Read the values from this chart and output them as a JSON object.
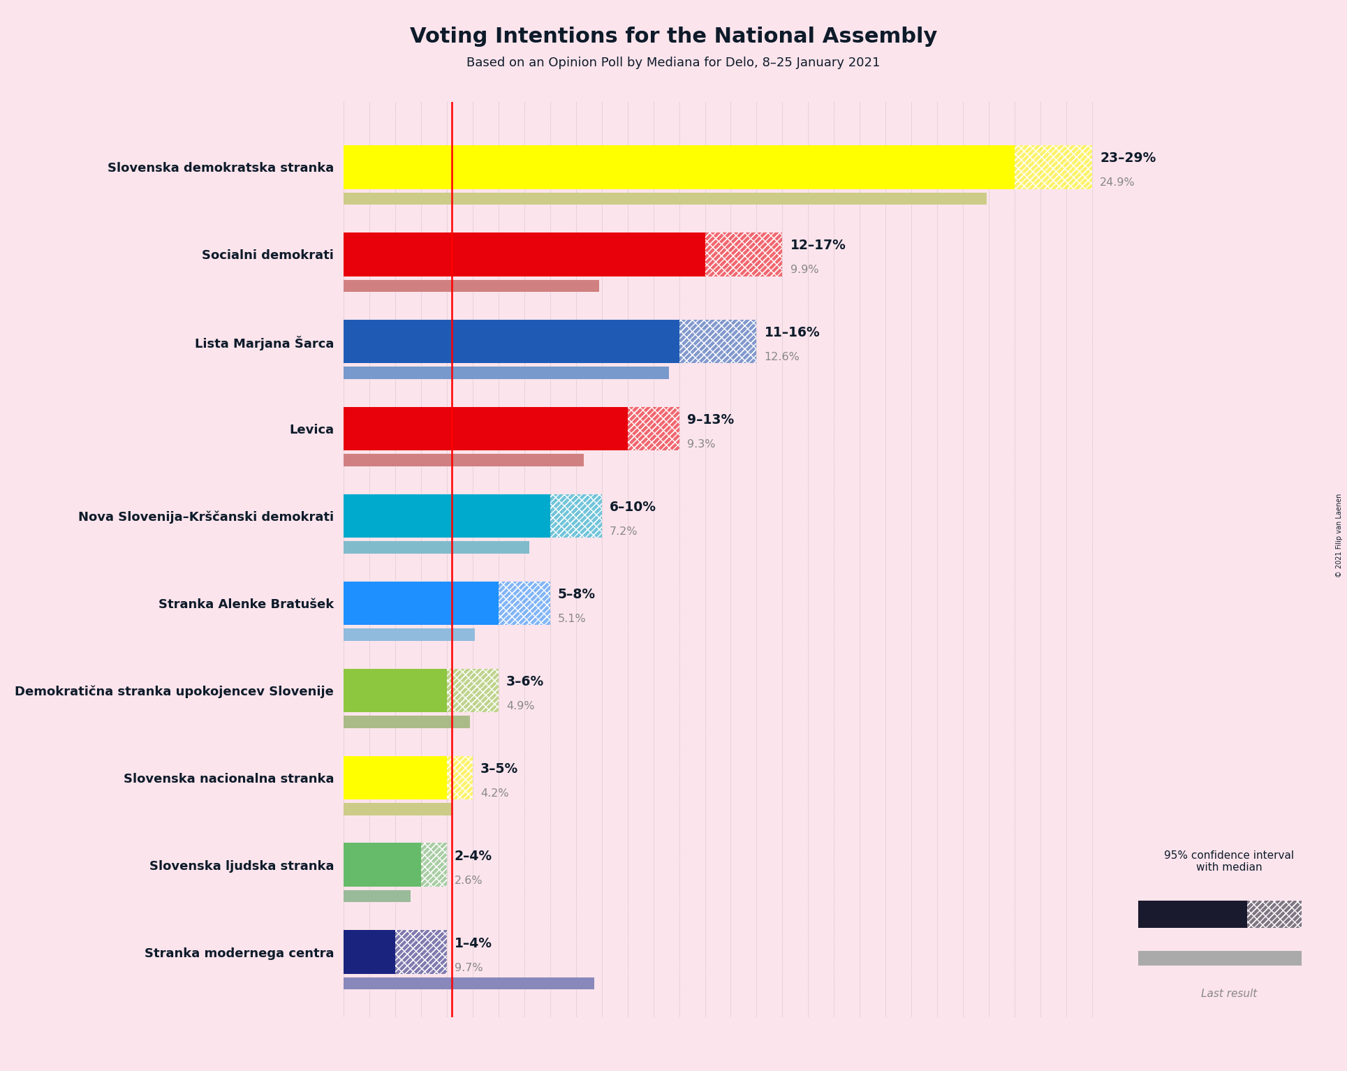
{
  "title": "Voting Intentions for the National Assembly",
  "subtitle": "Based on an Opinion Poll by Mediana for Delo, 8–25 January 2021",
  "copyright": "© 2021 Filip van Laenen",
  "background_color": "#fce4ec",
  "parties": [
    {
      "name": "Slovenska demokratska stranka",
      "color": "#FFFF00",
      "last_color": "#CCCC88",
      "ci_low": 23,
      "ci_high": 29,
      "median": 26,
      "last_result": 24.9,
      "label": "23–29%",
      "label_gray": "24.9%"
    },
    {
      "name": "Socialni demokrati",
      "color": "#E8000B",
      "last_color": "#D08080",
      "ci_low": 12,
      "ci_high": 17,
      "median": 14,
      "last_result": 9.9,
      "label": "12–17%",
      "label_gray": "9.9%"
    },
    {
      "name": "Lista Marjana Šarca",
      "color": "#1F5BB5",
      "last_color": "#7799CC",
      "ci_low": 11,
      "ci_high": 16,
      "median": 13,
      "last_result": 12.6,
      "label": "11–16%",
      "label_gray": "12.6%"
    },
    {
      "name": "Levica",
      "color": "#E8000B",
      "last_color": "#D08080",
      "ci_low": 9,
      "ci_high": 13,
      "median": 11,
      "last_result": 9.3,
      "label": "9–13%",
      "label_gray": "9.3%"
    },
    {
      "name": "Nova Slovenija–Krščanski demokrati",
      "color": "#00AACC",
      "last_color": "#80BBCC",
      "ci_low": 6,
      "ci_high": 10,
      "median": 8,
      "last_result": 7.2,
      "label": "6–10%",
      "label_gray": "7.2%"
    },
    {
      "name": "Stranka Alenke Bratušek",
      "color": "#1E90FF",
      "last_color": "#90BBDD",
      "ci_low": 5,
      "ci_high": 8,
      "median": 6,
      "last_result": 5.1,
      "label": "5–8%",
      "label_gray": "5.1%"
    },
    {
      "name": "Demokratična stranka upokojencev Slovenije",
      "color": "#8DC63F",
      "last_color": "#AABB88",
      "ci_low": 3,
      "ci_high": 6,
      "median": 4,
      "last_result": 4.9,
      "label": "3–6%",
      "label_gray": "4.9%"
    },
    {
      "name": "Slovenska nacionalna stranka",
      "color": "#FFFF00",
      "last_color": "#CCCC88",
      "ci_low": 3,
      "ci_high": 5,
      "median": 4,
      "last_result": 4.2,
      "label": "3–5%",
      "label_gray": "4.2%"
    },
    {
      "name": "Slovenska ljudska stranka",
      "color": "#66BB6A",
      "last_color": "#99BB99",
      "ci_low": 2,
      "ci_high": 4,
      "median": 3,
      "last_result": 2.6,
      "label": "2–4%",
      "label_gray": "2.6%"
    },
    {
      "name": "Stranka modernega centra",
      "color": "#1A237E",
      "last_color": "#8888BB",
      "ci_low": 1,
      "ci_high": 4,
      "median": 2,
      "last_result": 9.7,
      "label": "1–4%",
      "label_gray": "9.7%"
    }
  ],
  "xlim_max": 30,
  "red_line_x": 4.2,
  "text_color": "#0d1b2a",
  "gray_color": "#888888",
  "legend_ci_color": "#1a1a2e",
  "legend_lr_color": "#aaaaaa"
}
